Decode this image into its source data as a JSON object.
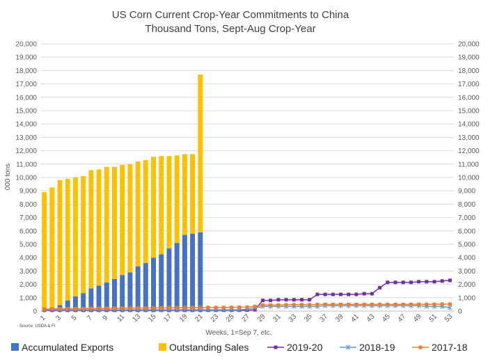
{
  "chart_data": {
    "type": "bar",
    "title": "US Corn Current Crop-Year Commitments to China",
    "subtitle": "Thousand Tons, Sept-Aug Crop-Year",
    "xlabel": "Weeks, 1=Sep 7, etc.",
    "ylabel": "000 tons",
    "source": "Source: USDA & FI",
    "ylim": [
      0,
      20000
    ],
    "yticks": [
      "0",
      "1,000",
      "2,000",
      "3,000",
      "4,000",
      "5,000",
      "6,000",
      "7,000",
      "8,000",
      "9,000",
      "10,000",
      "11,000",
      "12,000",
      "13,000",
      "14,000",
      "15,000",
      "16,000",
      "17,000",
      "18,000",
      "19,000",
      "20,000"
    ],
    "x_tick_labels": [
      "1",
      "3",
      "5",
      "7",
      "9",
      "11",
      "13",
      "15",
      "17",
      "19",
      "21",
      "23",
      "25",
      "27",
      "29",
      "31",
      "33",
      "35",
      "37",
      "39",
      "41",
      "43",
      "45",
      "47",
      "49",
      "51",
      "53"
    ],
    "weeks": [
      1,
      2,
      3,
      4,
      5,
      6,
      7,
      8,
      9,
      10,
      11,
      12,
      13,
      14,
      15,
      16,
      17,
      18,
      19,
      20,
      21,
      22,
      23,
      24,
      25,
      26,
      27,
      28,
      29,
      30,
      31,
      32,
      33,
      34,
      35,
      36,
      37,
      38,
      39,
      40,
      41,
      42,
      43,
      44,
      45,
      46,
      47,
      48,
      49,
      50,
      51,
      52,
      53
    ],
    "grid": true,
    "legend_position": "bottom",
    "series": [
      {
        "name": "Accumulated Exports",
        "kind": "bar",
        "color": "#4472C4",
        "values": [
          0,
          250,
          450,
          800,
          1100,
          1350,
          1700,
          1900,
          2150,
          2400,
          2700,
          2900,
          3350,
          3600,
          4000,
          4250,
          4700,
          5100,
          5700,
          5800,
          5900
        ]
      },
      {
        "name": "Outstanding Sales",
        "kind": "bar",
        "color": "#FFC000",
        "values": [
          8900,
          9000,
          9350,
          9100,
          8900,
          8750,
          8850,
          8700,
          8650,
          8400,
          8250,
          8100,
          7850,
          7700,
          7550,
          7350,
          6900,
          6550,
          6050,
          5950,
          11800
        ]
      },
      {
        "name": "2019-20",
        "kind": "line",
        "color": "#7030A0",
        "marker": "square",
        "values": [
          60,
          60,
          60,
          60,
          60,
          60,
          60,
          60,
          60,
          60,
          60,
          60,
          60,
          60,
          60,
          60,
          60,
          60,
          60,
          60,
          60,
          70,
          70,
          70,
          70,
          70,
          70,
          100,
          800,
          800,
          850,
          850,
          850,
          850,
          850,
          1250,
          1250,
          1250,
          1250,
          1250,
          1250,
          1300,
          1300,
          1750,
          2150,
          2150,
          2150,
          2150,
          2200,
          2200,
          2200,
          2250,
          2300
        ]
      },
      {
        "name": "2018-19",
        "kind": "line",
        "color": "#5B9BD5",
        "marker": "x",
        "values": [
          100,
          100,
          100,
          100,
          100,
          100,
          100,
          100,
          100,
          100,
          100,
          100,
          100,
          100,
          100,
          100,
          100,
          100,
          100,
          100,
          100,
          100,
          100,
          100,
          100,
          100,
          150,
          250,
          350,
          350,
          350,
          350,
          350,
          350,
          350,
          350,
          400,
          400,
          400,
          400,
          400,
          400,
          400,
          400,
          400,
          400,
          400,
          400,
          400,
          350,
          350,
          350,
          250
        ]
      },
      {
        "name": "2017-18",
        "kind": "line",
        "color": "#ED7D31",
        "marker": "square",
        "values": [
          150,
          160,
          170,
          180,
          180,
          190,
          200,
          200,
          210,
          210,
          220,
          220,
          230,
          230,
          240,
          240,
          250,
          250,
          260,
          260,
          260,
          270,
          270,
          270,
          280,
          290,
          300,
          350,
          450,
          450,
          450,
          470,
          480,
          480,
          480,
          490,
          500,
          500,
          500,
          500,
          500,
          500,
          500,
          500,
          500,
          500,
          500,
          500,
          510,
          510,
          510,
          520,
          520
        ]
      }
    ]
  }
}
